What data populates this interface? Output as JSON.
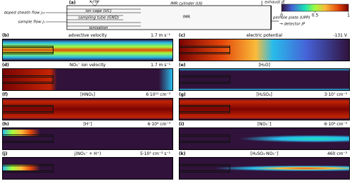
{
  "schematic": {
    "letter": "(a)",
    "labels": [
      "doped sheath flow jₛₕ",
      "sample flow jₛ",
      "x-ray",
      "ion cage (UC)",
      "sampling tube (GND)",
      "ionisation",
      "IMR cylinder (UI)",
      "IMR",
      "exhaust jE",
      "pinhole plate (UPP)",
      "→ detector jP"
    ]
  },
  "colorbar": {
    "ticks": [
      0,
      0.5,
      1
    ]
  },
  "panels": [
    {
      "letter": "(b)",
      "title": "advective velocity",
      "scale": "1.7 m s⁻¹"
    },
    {
      "letter": "(c)",
      "title": "electric potential",
      "scale": "-131 V"
    },
    {
      "letter": "(d)",
      "title": "NO₃⁻ ion velocity",
      "scale": "1.7 m s⁻¹"
    },
    {
      "letter": "(e)",
      "title": "[H₂O]"
    },
    {
      "letter": "(f)",
      "title": "[HNO₃]",
      "scale": "6·10¹¹ cm⁻³"
    },
    {
      "letter": "(g)",
      "title": "[H₂SO₄]",
      "scale": "3·10⁷ cm⁻³"
    },
    {
      "letter": "(h)",
      "title": "[H⁺]",
      "scale": "6·10⁶ cm⁻³"
    },
    {
      "letter": "(i)",
      "title": "[NO₃⁻]",
      "scale": "6·10⁶ cm⁻³"
    },
    {
      "letter": "(j)",
      "title": "j(NO₃⁻ + H⁺)",
      "scale": "5·10⁵ cm⁻² s⁻¹"
    },
    {
      "letter": "(k)",
      "title": "[H₂SO₄·NO₃⁻]",
      "scale": "460 cm⁻³"
    }
  ]
}
